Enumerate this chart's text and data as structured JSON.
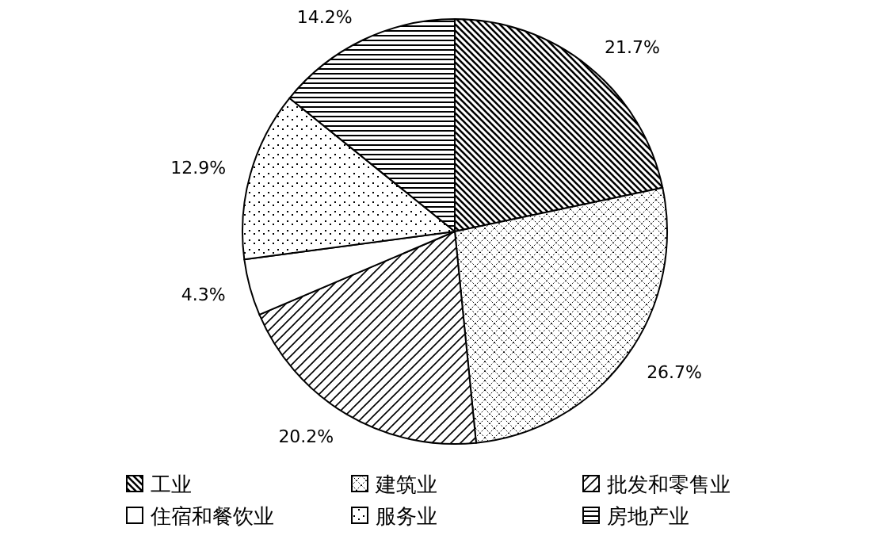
{
  "chart_data": {
    "type": "pie",
    "categories": [
      "工业",
      "建筑业",
      "批发和零售业",
      "住宿和餐饮业",
      "服务业",
      "房地产业"
    ],
    "values": [
      21.7,
      26.7,
      20.2,
      4.3,
      12.9,
      14.2
    ],
    "value_labels": [
      "21.7%",
      "26.7%",
      "20.2%",
      "4.3%",
      "12.9%",
      "14.2%"
    ],
    "colors": [
      "#ffffff",
      "#ffffff",
      "#ffffff",
      "#ffffff",
      "#ffffff",
      "#ffffff"
    ],
    "legend": "bottom"
  }
}
